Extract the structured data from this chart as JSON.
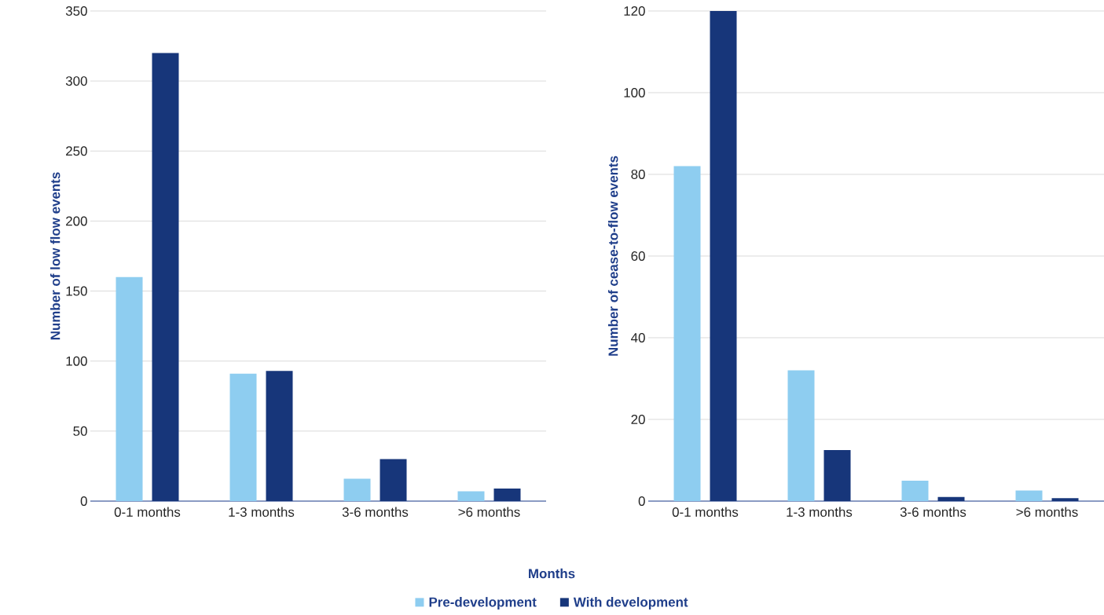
{
  "chart_data": [
    {
      "type": "bar",
      "ylabel": "Number of low flow events",
      "xlabel": "Months",
      "categories": [
        "0-1 months",
        "1-3 months",
        "3-6 months",
        ">6 months"
      ],
      "series": [
        {
          "name": "Pre-development",
          "color": "#8ecdf0",
          "values": [
            160,
            91,
            16,
            7
          ]
        },
        {
          "name": "With development",
          "color": "#17367a",
          "values": [
            320,
            93,
            30,
            9
          ]
        }
      ],
      "ylim": [
        0,
        350
      ],
      "yticks": [
        0,
        50,
        100,
        150,
        200,
        250,
        300,
        350
      ],
      "grid": "y",
      "legend": "bottom"
    },
    {
      "type": "bar",
      "ylabel": "Number of cease-to-flow events",
      "categories": [
        "0-1 months",
        "1-3 months",
        "3-6 months",
        ">6 months"
      ],
      "series": [
        {
          "color": "#8ecdf0",
          "values": [
            82,
            32,
            5,
            2.6
          ]
        },
        {
          "color": "#17367a",
          "values": [
            120,
            12.5,
            1,
            0.7
          ]
        }
      ],
      "ylim": [
        0,
        120
      ],
      "yticks": [
        0,
        20,
        40,
        60,
        80,
        100,
        120
      ],
      "grid": "y"
    }
  ]
}
